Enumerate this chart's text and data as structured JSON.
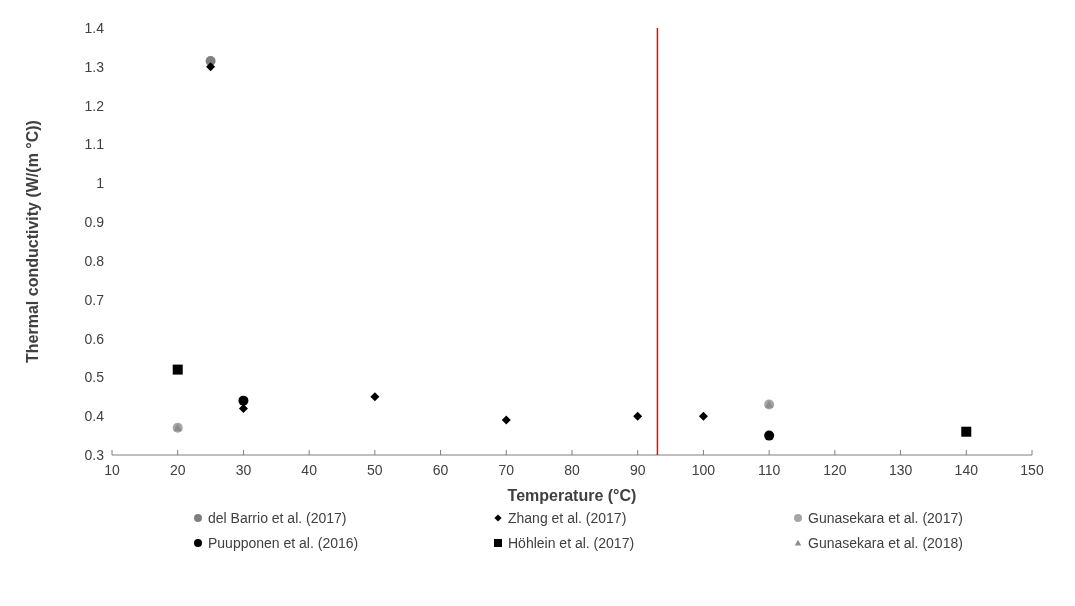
{
  "chart_data": {
    "type": "scatter",
    "xlabel": "Temperature (°C)",
    "ylabel": "Thermal conductivity (W/(m °C))",
    "xlim": [
      10,
      150
    ],
    "xticks": [
      10,
      20,
      30,
      40,
      50,
      60,
      70,
      80,
      90,
      100,
      110,
      120,
      130,
      140,
      150
    ],
    "ylim": [
      0.3,
      1.4
    ],
    "yticks": [
      0.3,
      0.4,
      0.5,
      0.6,
      0.7,
      0.8,
      0.9,
      1,
      1.1,
      1.2,
      1.3,
      1.4
    ],
    "grid": false,
    "legend": "bottom",
    "ref_lines": [
      {
        "axis": "x",
        "value": 93,
        "color": "#ff0000"
      }
    ],
    "series": [
      {
        "name": "del Barrio et al. (2017)",
        "color": "#7f7f7f",
        "marker": "circle",
        "x": [
          25
        ],
        "values": [
          1.315
        ]
      },
      {
        "name": "Zhang et al. (2017)",
        "color": "#000000",
        "marker": "diamond",
        "x": [
          25,
          30,
          50,
          70,
          90,
          100
        ],
        "values": [
          1.3,
          0.42,
          0.45,
          0.39,
          0.4,
          0.4
        ]
      },
      {
        "name": "Gunasekara et al. (2017)",
        "color": "#a5a5a5",
        "marker": "circle",
        "x": [
          20,
          110
        ],
        "values": [
          0.37,
          0.43
        ]
      },
      {
        "name": "Puupponen et al. (2016)",
        "color": "#000000",
        "marker": "circle",
        "x": [
          30,
          110
        ],
        "values": [
          0.44,
          0.35
        ]
      },
      {
        "name": "Höhlein et al. (2017)",
        "color": "#000000",
        "marker": "square",
        "x": [
          20,
          140
        ],
        "values": [
          0.52,
          0.36
        ]
      },
      {
        "name": "Gunasekara et al. (2018)",
        "color": "#8c8c8c",
        "marker": "triangle",
        "x": [
          20,
          110
        ],
        "values": [
          0.37,
          0.43
        ]
      }
    ]
  }
}
